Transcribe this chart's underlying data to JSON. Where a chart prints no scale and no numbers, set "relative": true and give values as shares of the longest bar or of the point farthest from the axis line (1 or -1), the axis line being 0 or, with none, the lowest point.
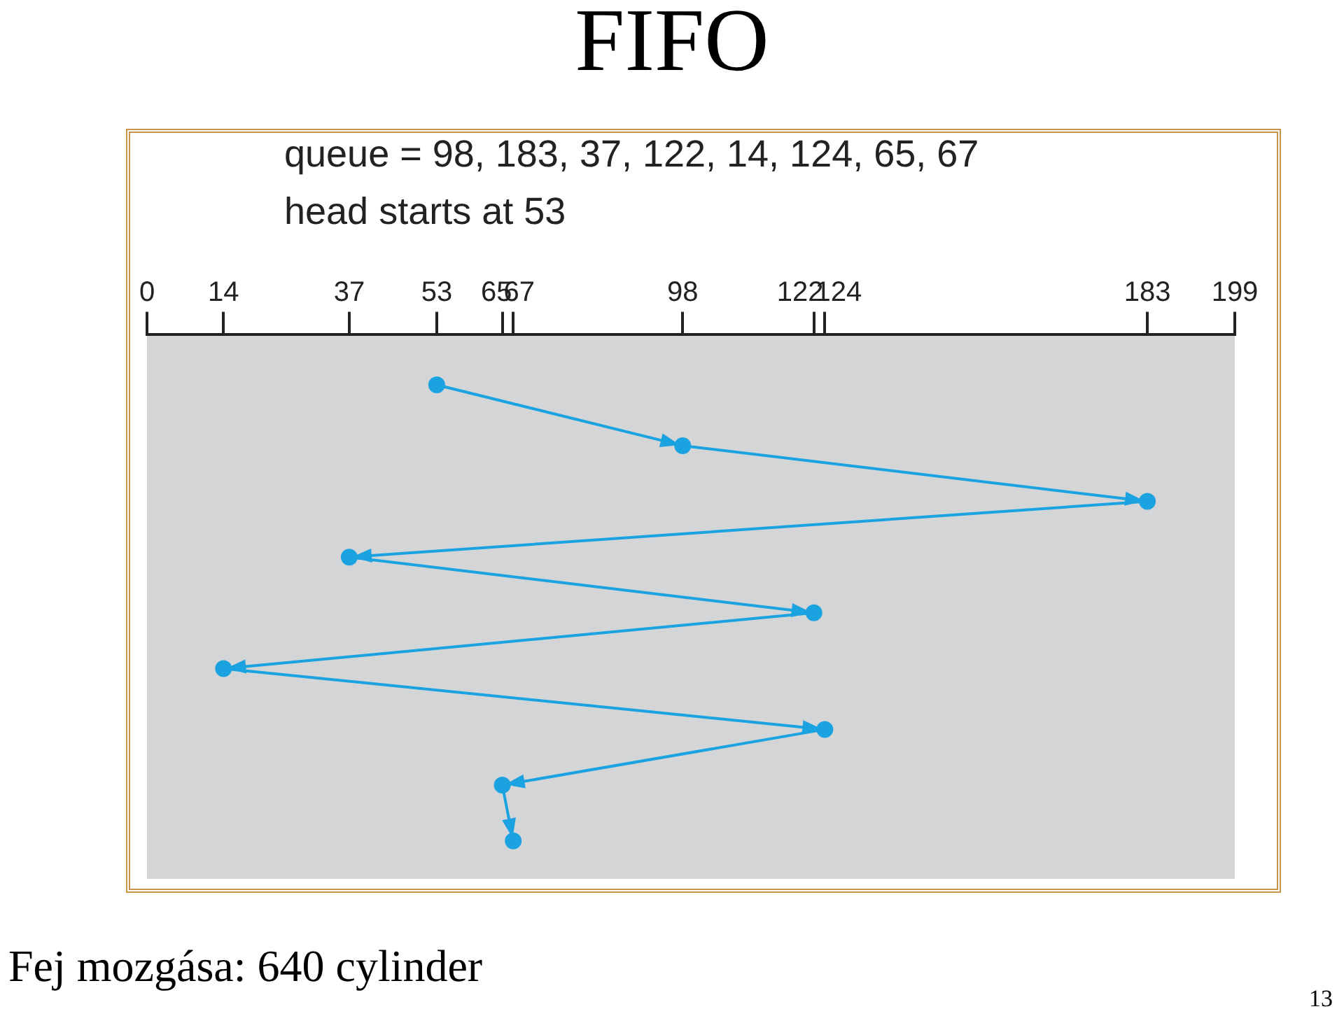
{
  "chart_data": {
    "type": "line",
    "title": "FIFO",
    "annotations": [
      "queue = 98, 183, 37, 122, 14, 124, 65, 67",
      "head starts at 53",
      "Fej mozgása: 640 cylinder",
      "13"
    ],
    "x": [
      53,
      98,
      183,
      37,
      122,
      14,
      124,
      65,
      67
    ],
    "relative": true,
    "series": [
      {
        "color": "#1aa3e0",
        "values": [
          -0.1,
          -0.22,
          -0.33,
          -0.44,
          -0.55,
          -0.66,
          -0.78,
          -0.89,
          -1
        ]
      }
    ],
    "xlim": [
      0,
      199
    ],
    "xticks": [
      0,
      14,
      37,
      53,
      65,
      67,
      98,
      122,
      124,
      183,
      199
    ],
    "marker": "circle",
    "line_style": "solid",
    "grid": false,
    "legend": false
  }
}
